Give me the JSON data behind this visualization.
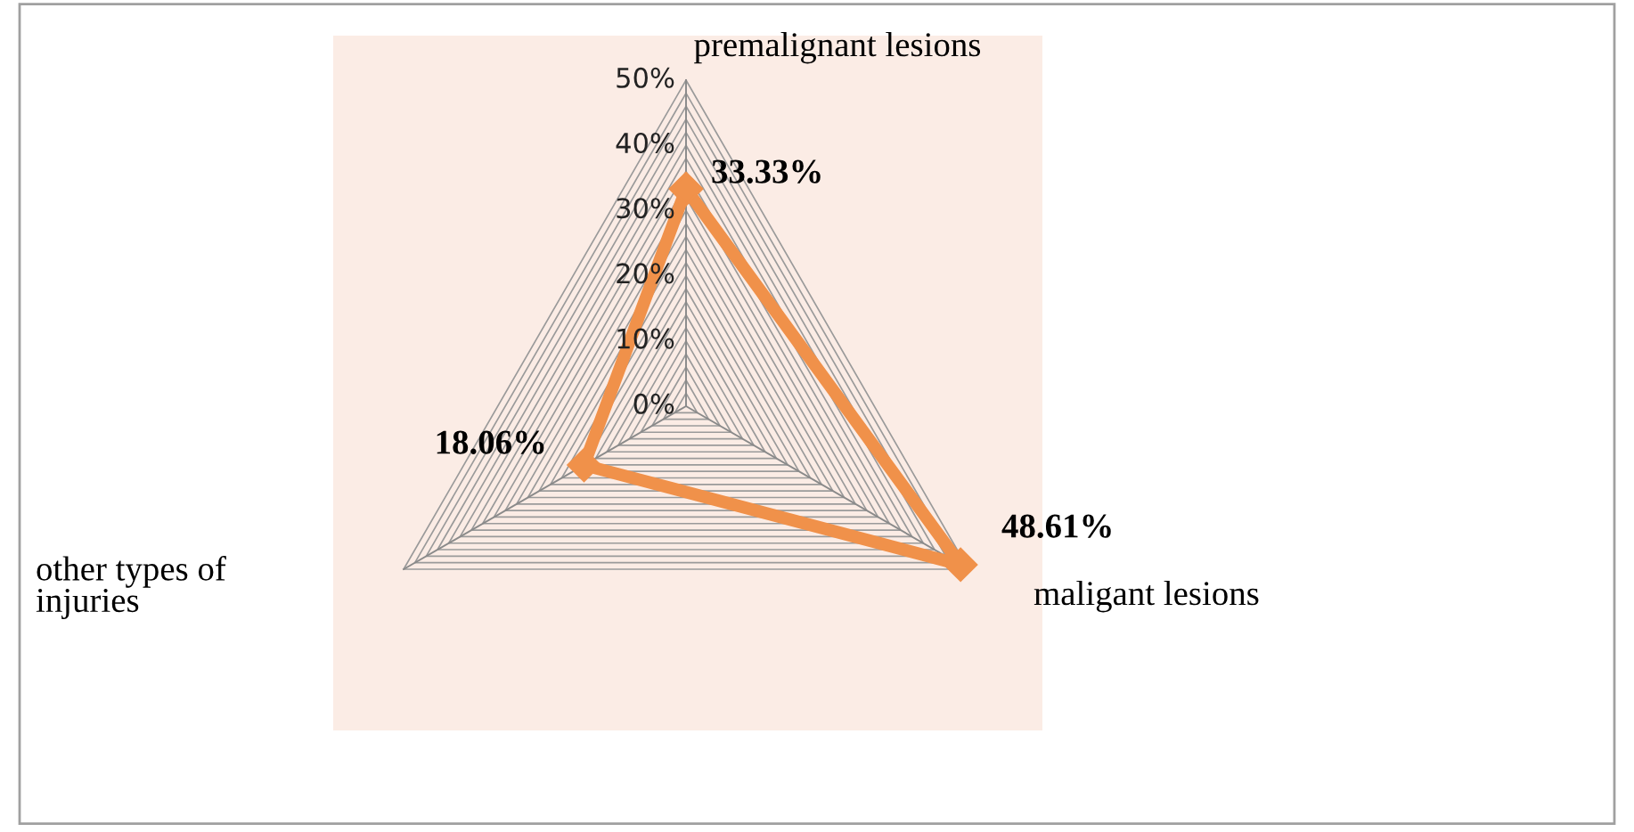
{
  "chart_data": {
    "type": "radar",
    "categories": [
      "premalignant lesions",
      "maligant lesions",
      "other types of injuries"
    ],
    "series": [
      {
        "color": "#f0914a",
        "values": [
          33.33,
          48.61,
          18.06
        ],
        "value_labels": [
          "33.33%",
          "48.61%",
          "18.06%"
        ]
      }
    ],
    "ylim": [
      0,
      50
    ],
    "yticks": [
      {
        "value": 0,
        "label": "0%"
      },
      {
        "value": 10,
        "label": "10%"
      },
      {
        "value": 20,
        "label": "20%"
      },
      {
        "value": 30,
        "label": "30%"
      },
      {
        "value": 40,
        "label": "40%"
      },
      {
        "value": 50,
        "label": "50%"
      }
    ],
    "grid": true,
    "marker": "diamond",
    "line_style": "solid"
  }
}
